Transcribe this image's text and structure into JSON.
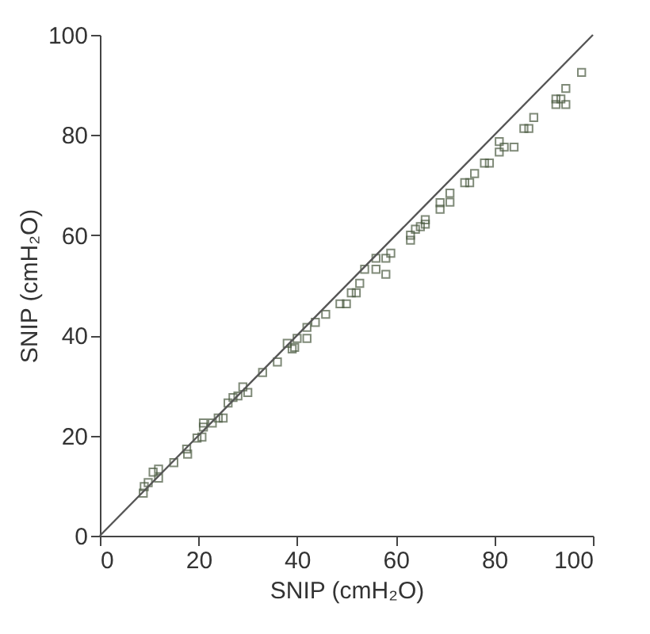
{
  "chart_data": {
    "type": "scatter",
    "xlabel": "SNIP (cmH₂O)",
    "ylabel": "SNIP (cmH₂O)",
    "xlim": [
      0,
      100
    ],
    "ylim": [
      0,
      100
    ],
    "xticks": [
      0,
      20,
      40,
      60,
      80,
      100
    ],
    "yticks": [
      0,
      20,
      40,
      60,
      80,
      100
    ],
    "grid": false,
    "marker": "square",
    "series": [
      {
        "type": "scatter",
        "color": "#4a5a40",
        "x": [
          8.8,
          9,
          9.8,
          10.8,
          11.9,
          11.9,
          15,
          17.6,
          17.8,
          19.7,
          20.7,
          21,
          21,
          22.8,
          24,
          25,
          26,
          27,
          28,
          29,
          30,
          33,
          36,
          38,
          39,
          40,
          39.5,
          42,
          42,
          43.7,
          45.8,
          48.7,
          50,
          51,
          52,
          52.7,
          53.7,
          56,
          56,
          58,
          58,
          59,
          63,
          63,
          64,
          65,
          66,
          66,
          69,
          69,
          71,
          71,
          74,
          75,
          76,
          78,
          79,
          81,
          81,
          82,
          84,
          86,
          87,
          88,
          92.5,
          92.5,
          93.5,
          94.5,
          94.5,
          97.7
        ],
        "values": [
          8.5,
          9.8,
          10.6,
          12.7,
          13.3,
          11.5,
          14.6,
          17.3,
          16.3,
          19.5,
          19.7,
          21.7,
          22.5,
          22.5,
          23.5,
          23.5,
          26.5,
          27.6,
          27.9,
          29.7,
          28.6,
          32.6,
          34.7,
          38.4,
          37.3,
          39.4,
          37.6,
          39.4,
          41.6,
          42.6,
          44.2,
          46.3,
          46.3,
          48.5,
          48.5,
          50.4,
          53.2,
          53.2,
          55.4,
          52.2,
          55.4,
          56.4,
          59,
          60,
          61.2,
          61.7,
          63.1,
          62.2,
          66.5,
          65.2,
          66.6,
          68.4,
          70.5,
          70.5,
          72.3,
          74.4,
          74.4,
          76.6,
          78.7,
          77.6,
          77.6,
          81.3,
          81.3,
          83.5,
          86.1,
          87.2,
          87.2,
          86.1,
          89.3,
          92.5
        ]
      },
      {
        "type": "line",
        "color": "#555555",
        "line_style": "solid",
        "marker": "none",
        "x": [
          0,
          100
        ],
        "values": [
          0,
          100
        ]
      }
    ]
  }
}
